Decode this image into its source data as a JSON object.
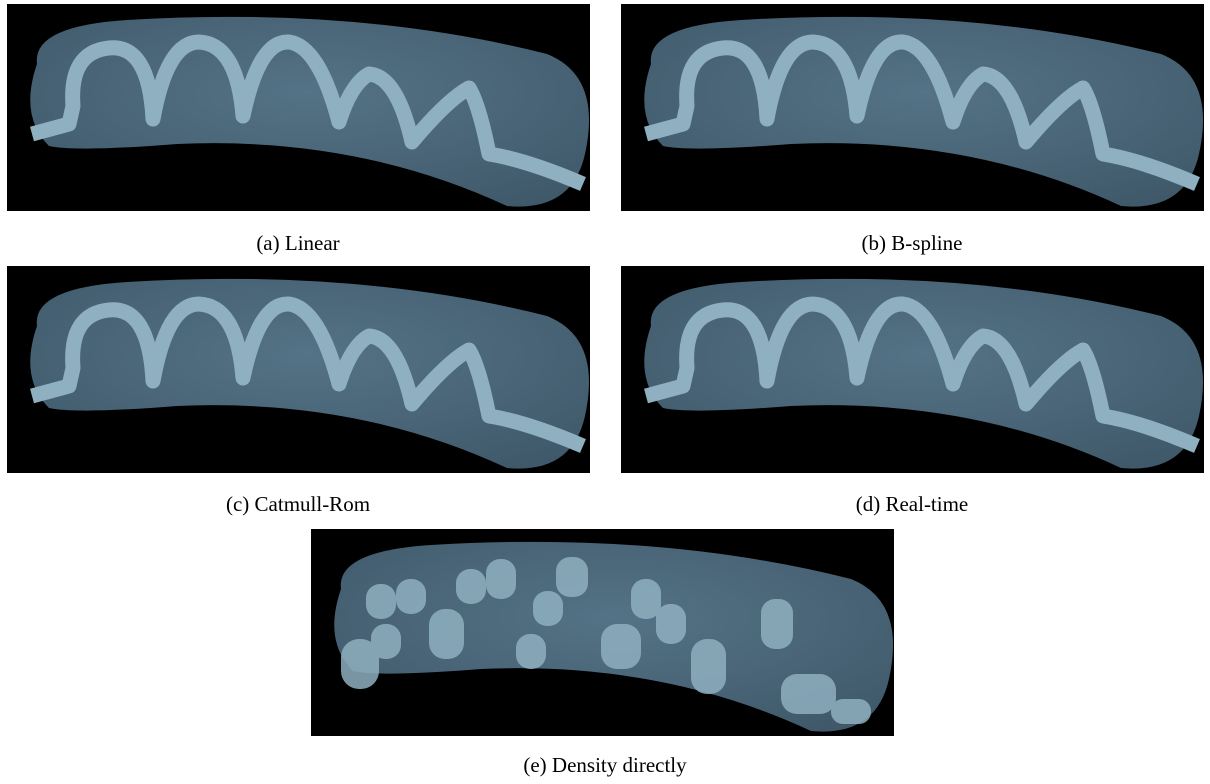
{
  "figure": {
    "panels": [
      {
        "caption": "(a) Linear"
      },
      {
        "caption": "(b) B-spline"
      },
      {
        "caption": "(c) Catmull-Rom"
      },
      {
        "caption": "(d) Real-time"
      },
      {
        "caption": "(e) Density directly"
      }
    ]
  }
}
